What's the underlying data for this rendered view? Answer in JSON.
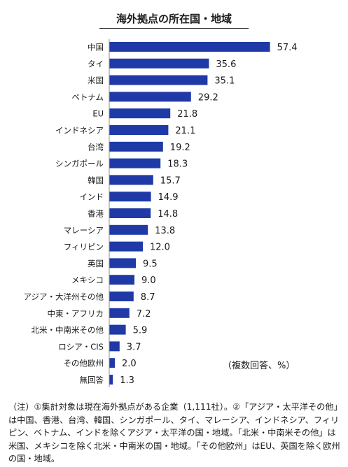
{
  "title": "海外拠点の所在国・地域",
  "unit_note": "（複数回答、%）",
  "footnote": "（注）①集計対象は現在海外拠点がある企業（1,111社）。②「アジア・太平洋その他」は中国、香港、台湾、韓国、シンガポール、タイ、マレーシア、インドネシア、フィリピン、ベトナム、インドを除くアジア・太平洋の国・地域。「北米・中南米その他」は米国、メキシコを除く北米・中南米の国・地域。「その他欧州」はEU、英国を除く欧州の国・地域。",
  "colors": {
    "bar": "#1f3aa6",
    "axis": "#8c8c8c",
    "text": "#1a1a1a"
  },
  "chart_data": {
    "type": "bar",
    "orientation": "horizontal",
    "categories": [
      "中国",
      "タイ",
      "米国",
      "ベトナム",
      "EU",
      "インドネシア",
      "台湾",
      "シンガポール",
      "韓国",
      "インド",
      "香港",
      "マレーシア",
      "フィリピン",
      "英国",
      "メキシコ",
      "アジア・大洋州その他",
      "中東・アフリカ",
      "北米・中南米その他",
      "ロシア・CIS",
      "その他欧州",
      "無回答"
    ],
    "values": [
      57.4,
      35.6,
      35.1,
      29.2,
      21.8,
      21.1,
      19.2,
      18.3,
      15.7,
      14.9,
      14.8,
      13.8,
      12.0,
      9.5,
      9.0,
      8.7,
      7.2,
      5.9,
      3.7,
      2.0,
      1.3
    ],
    "value_labels": [
      "57.4",
      "35.6",
      "35.1",
      "29.2",
      "21.8",
      "21.1",
      "19.2",
      "18.3",
      "15.7",
      "14.9",
      "14.8",
      "13.8",
      "12.0",
      "9.5",
      "9.0",
      "8.7",
      "7.2",
      "5.9",
      "3.7",
      "2.0",
      "1.3"
    ],
    "xlim": [
      0,
      60
    ],
    "grid": false,
    "legend": "none"
  }
}
